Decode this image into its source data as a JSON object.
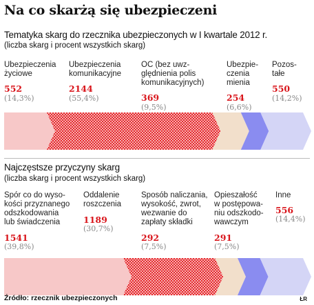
{
  "title": "Na co skarżą się ubezpieczeni",
  "footer": "Źródło: rzecznik ubezpieczonych",
  "credit": "ŁR",
  "colors": [
    "#f7c8c8",
    "#e8262b",
    "#f0a9a9",
    "#f2dfcb",
    "#8a8cf0",
    "#d1d2f6"
  ],
  "chart_data": [
    {
      "type": "bar",
      "title": "Tematyka skarg do rzecznika ubezpieczonych w I kwartale 2012 r.",
      "subtitle": "(liczba skarg i procent wszystkich skarg)",
      "categories": [
        [
          "Ubezpieczenia",
          "życiowe"
        ],
        [
          "Ubezpieczenia",
          "komunikacyjne"
        ],
        [
          "OC (bez uwz-",
          "ględnienia polis",
          "komunikacyjnych)"
        ],
        [
          "Ubezpie-",
          "czenia",
          "mienia"
        ],
        [
          "Pozos-",
          "tałe"
        ]
      ],
      "values": [
        552,
        2144,
        369,
        254,
        550
      ],
      "percents": [
        "(14,3%)",
        "(55,4%)",
        "(9,5%)",
        "(6,6%)",
        "(14,2%)"
      ],
      "value_labels": [
        "552",
        "2144",
        "369",
        "254",
        "550"
      ],
      "fills": [
        "light",
        "pattern",
        "beige",
        "blue",
        "lavender"
      ]
    },
    {
      "type": "bar",
      "title": "Najczęstsze przyczyny skarg",
      "subtitle": "(liczba skarg i procent wszystkich skarg)",
      "categories": [
        [
          "Spór co do wyso-",
          "kości przyznanego",
          "odszkodowania",
          "lub świadczenia"
        ],
        [
          "Oddalenie",
          "roszczenia"
        ],
        [
          "Sposób naliczania,",
          "wysokość, zwrot,",
          "wezwanie do",
          "zapłaty składki"
        ],
        [
          "Opieszałość",
          "w postępowa-",
          "niu odszkodo-",
          "wawczym"
        ],
        [
          "Inne"
        ]
      ],
      "values": [
        1541,
        1189,
        292,
        291,
        556
      ],
      "percents": [
        "(39,8%)",
        "(30,7%)",
        "(7,5%)",
        "(7,5%)",
        "(14,4%)"
      ],
      "value_labels": [
        "1541",
        "1189",
        "292",
        "291",
        "556"
      ],
      "fills": [
        "light",
        "pattern",
        "beige",
        "blue",
        "lavender"
      ]
    }
  ]
}
